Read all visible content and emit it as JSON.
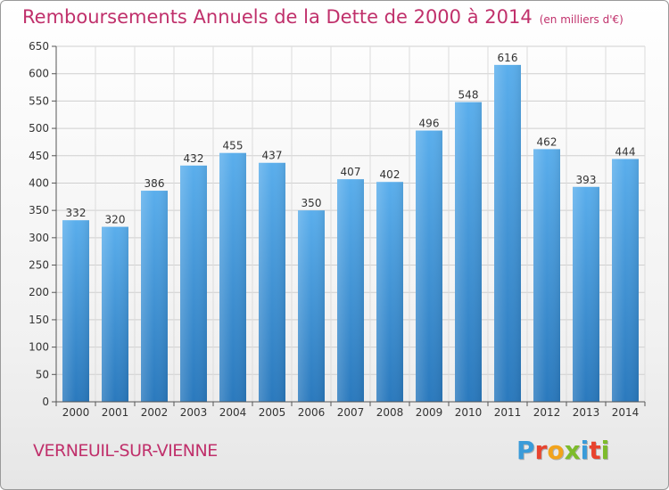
{
  "header": {
    "title": "Remboursements Annuels de la Dette de 2000 à 2014",
    "subtitle": "(en milliers d'€)"
  },
  "footer": {
    "city": "VERNEUIL-SUR-VIENNE",
    "logo_letters": [
      "P",
      "r",
      "o",
      "x",
      "i",
      "t",
      "i"
    ],
    "logo_colors": [
      "#3a9bd9",
      "#e8432e",
      "#f2a31b",
      "#7dbb2b",
      "#3a9bd9",
      "#e8432e",
      "#7dbb2b"
    ]
  },
  "chart_data": {
    "type": "bar",
    "categories": [
      "2000",
      "2001",
      "2002",
      "2003",
      "2004",
      "2005",
      "2006",
      "2007",
      "2008",
      "2009",
      "2010",
      "2011",
      "2012",
      "2013",
      "2014"
    ],
    "values": [
      332,
      320,
      386,
      432,
      455,
      437,
      350,
      407,
      402,
      496,
      548,
      616,
      462,
      393,
      444
    ],
    "ylim": [
      0,
      650
    ],
    "yticks": [
      0,
      50,
      100,
      150,
      200,
      250,
      300,
      350,
      400,
      450,
      500,
      550,
      600,
      650
    ],
    "grid": true,
    "bar_color": "#4f9fe0",
    "title": "Remboursements Annuels de la Dette de 2000 à 2014",
    "xlabel": "",
    "ylabel": ""
  }
}
